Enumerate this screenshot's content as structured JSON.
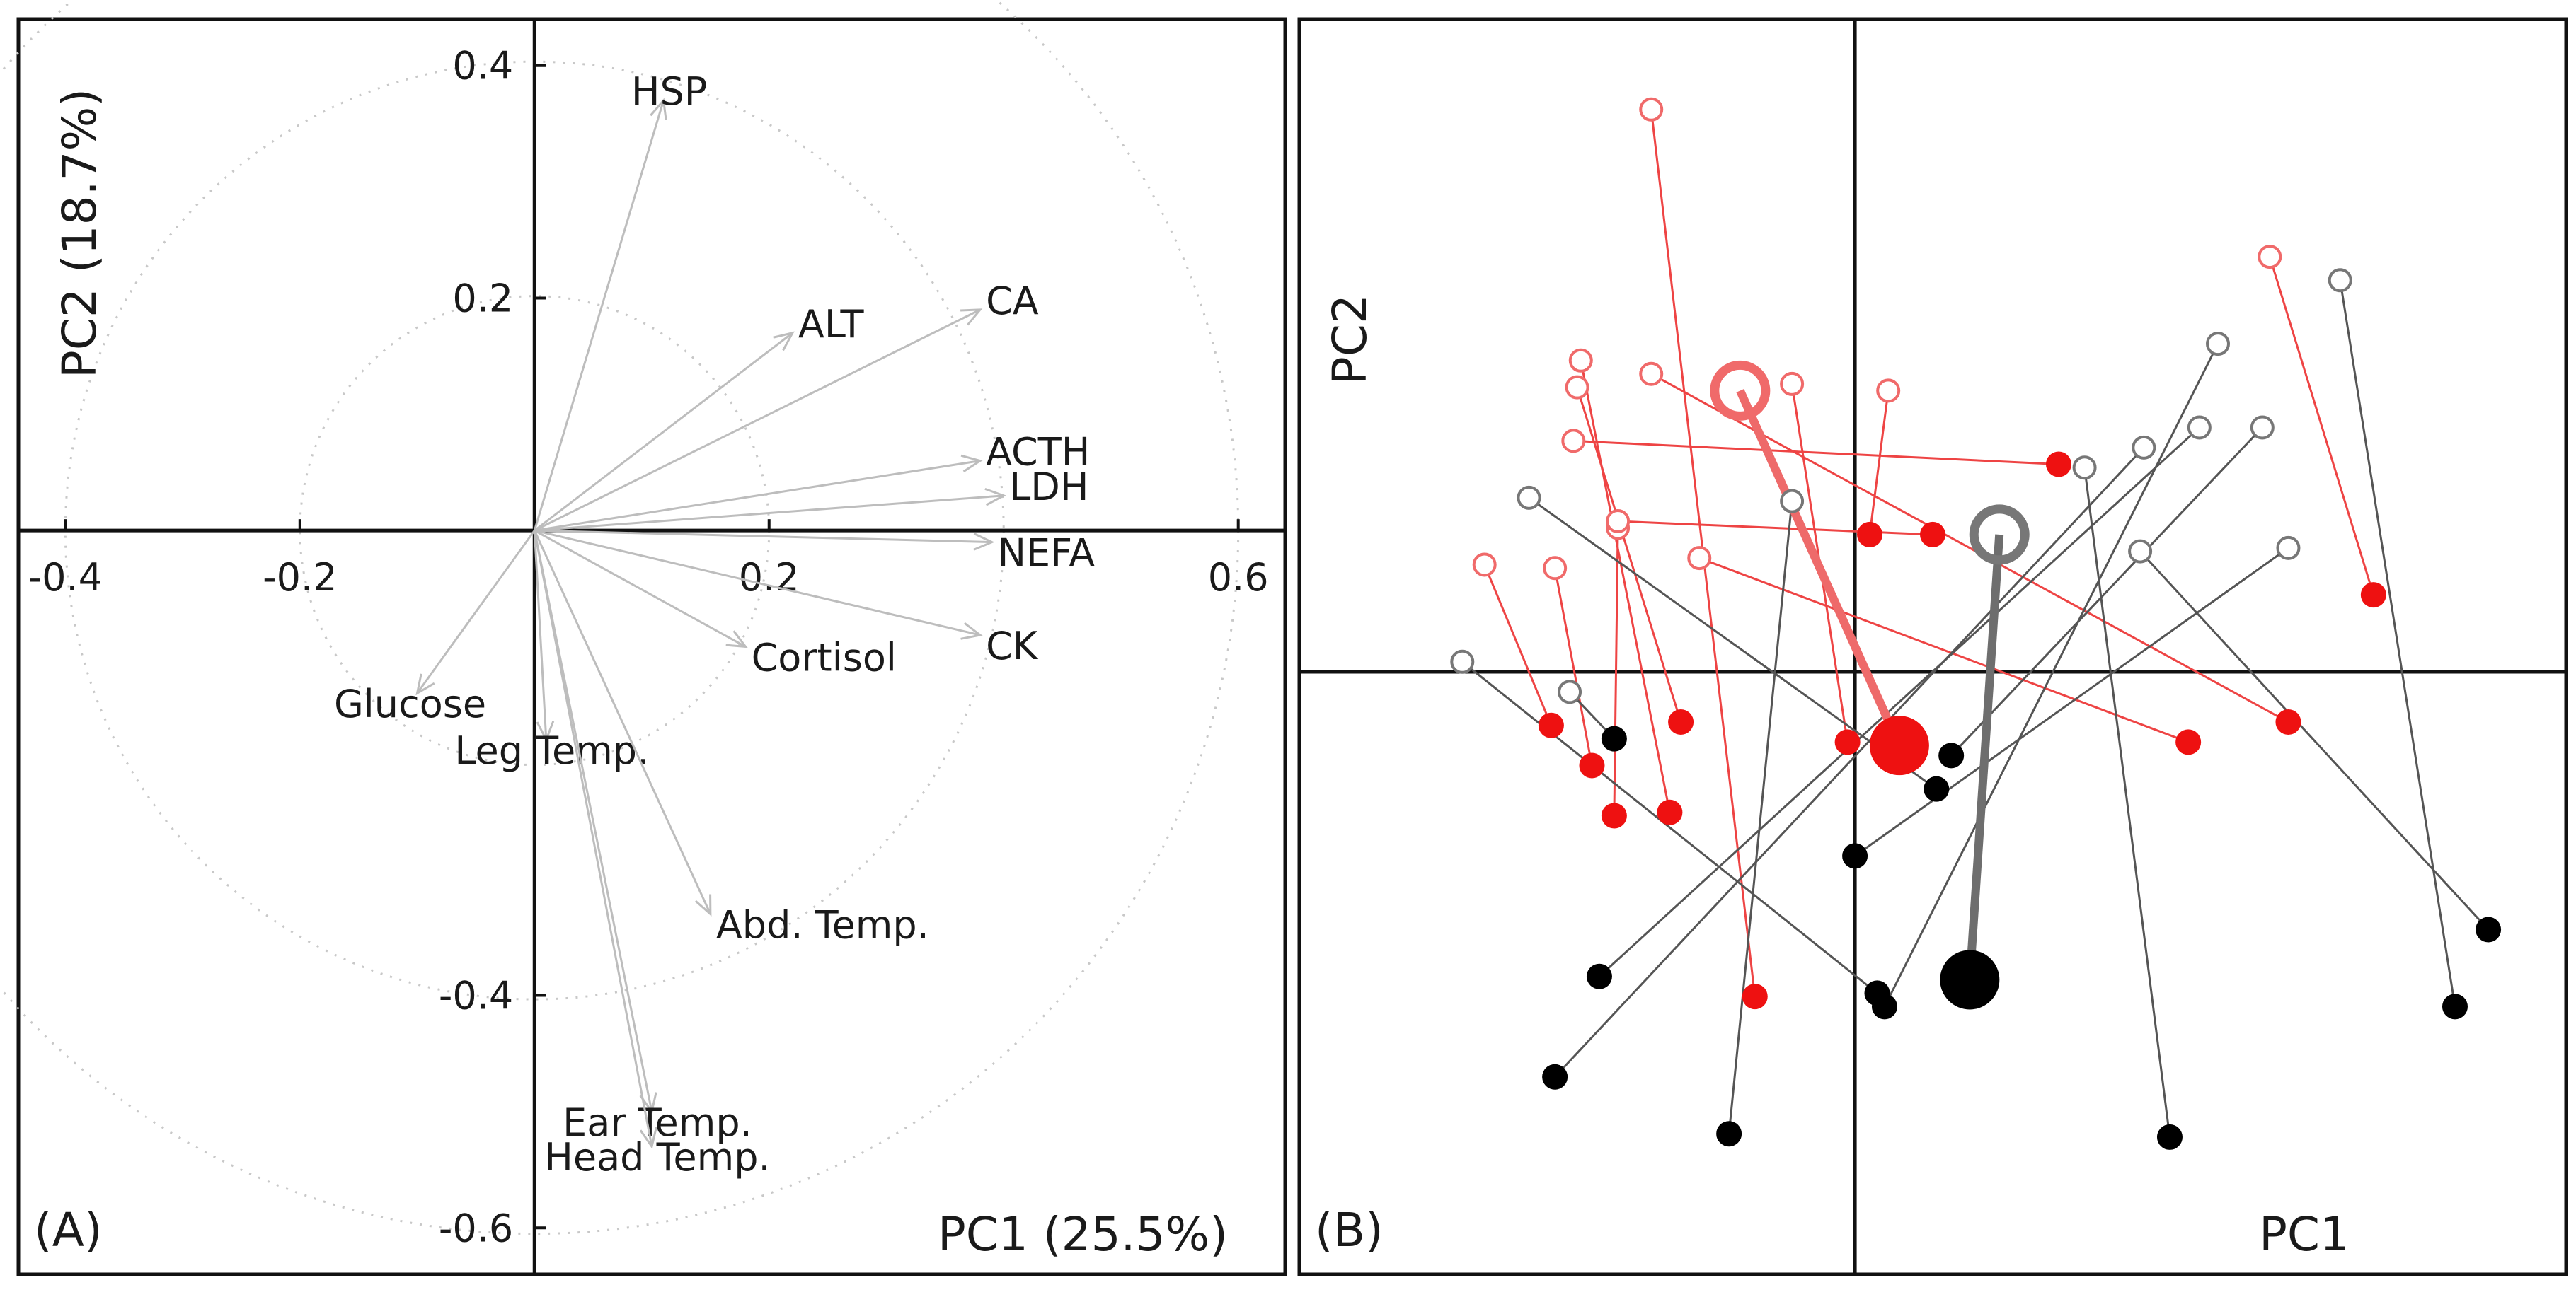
{
  "chart_data": [
    {
      "type": "scatter",
      "subtype": "pca-loadings-biplot",
      "panel_label": "(A)",
      "xlabel": "PC1 (25.5%)",
      "ylabel": "PC2 (18.7%)",
      "xlim": [
        -0.44,
        0.64
      ],
      "ylim": [
        -0.64,
        0.44
      ],
      "xticks": [
        -0.4,
        -0.2,
        0.2,
        0.6
      ],
      "xtick_labels": [
        "-0.4",
        "-0.2",
        "0.2",
        "0.6"
      ],
      "yticks": [
        0.4,
        0.2,
        -0.4,
        -0.6
      ],
      "ytick_labels": [
        "0.4",
        "0.2",
        "-0.4",
        "-0.6"
      ],
      "circle_radii": [
        0.2,
        0.4,
        0.6
      ],
      "loadings": [
        {
          "name": "HSP",
          "x": 0.11,
          "y": 0.37
        },
        {
          "name": "CA",
          "x": 0.38,
          "y": 0.19
        },
        {
          "name": "ALT",
          "x": 0.22,
          "y": 0.17
        },
        {
          "name": "ACTH",
          "x": 0.38,
          "y": 0.06
        },
        {
          "name": "LDH",
          "x": 0.4,
          "y": 0.03
        },
        {
          "name": "NEFA",
          "x": 0.39,
          "y": -0.01
        },
        {
          "name": "CK",
          "x": 0.38,
          "y": -0.09
        },
        {
          "name": "Cortisol",
          "x": 0.18,
          "y": -0.1
        },
        {
          "name": "Glucose",
          "x": -0.1,
          "y": -0.14
        },
        {
          "name": "Leg Temp.",
          "x": 0.01,
          "y": -0.18
        },
        {
          "name": "Abd. Temp.",
          "x": 0.15,
          "y": -0.33
        },
        {
          "name": "Ear Temp.",
          "x": 0.1,
          "y": -0.5
        },
        {
          "name": "Head Temp.",
          "x": 0.1,
          "y": -0.53
        }
      ]
    },
    {
      "type": "scatter",
      "subtype": "pca-scores-paired",
      "panel_label": "(B)",
      "xlabel": "PC1",
      "ylabel": "PC2",
      "xlim": [
        -1.5,
        1.92
      ],
      "ylim": [
        -1.8,
        1.95
      ],
      "colors": {
        "red_start": "#f06a6a",
        "red_end": "#ee1111",
        "red_line": "#ee4444",
        "red_mean_line": "#ee6a6a",
        "grey_start": "#777777",
        "black_end": "#000000",
        "grey_line": "#555555",
        "grey_mean_line": "#6e6e6e"
      },
      "red_pairs": [
        {
          "from": [
            -0.55,
            1.68
          ],
          "to": [
            -0.27,
            -0.97
          ]
        },
        {
          "from": [
            -0.74,
            0.93
          ],
          "to": [
            -0.5,
            -0.42
          ]
        },
        {
          "from": [
            -0.75,
            0.85
          ],
          "to": [
            -0.47,
            -0.15
          ]
        },
        {
          "from": [
            -0.81,
            0.31
          ],
          "to": [
            -0.71,
            -0.28
          ]
        },
        {
          "from": [
            -1.0,
            0.32
          ],
          "to": [
            -0.82,
            -0.16
          ]
        },
        {
          "from": [
            -0.64,
            0.43
          ],
          "to": [
            -0.65,
            -0.43
          ]
        },
        {
          "from": [
            -0.17,
            0.86
          ],
          "to": [
            -0.02,
            -0.21
          ]
        },
        {
          "from": [
            0.09,
            0.84
          ],
          "to": [
            0.04,
            0.41
          ]
        },
        {
          "from": [
            1.12,
            1.24
          ],
          "to": [
            1.4,
            0.23
          ]
        },
        {
          "from": [
            -0.76,
            0.69
          ],
          "to": [
            0.55,
            0.62
          ]
        },
        {
          "from": [
            -0.64,
            0.45
          ],
          "to": [
            0.21,
            0.41
          ]
        },
        {
          "from": [
            -0.55,
            0.89
          ],
          "to": [
            1.17,
            -0.15
          ]
        },
        {
          "from": [
            -0.42,
            0.34
          ],
          "to": [
            0.9,
            -0.21
          ]
        }
      ],
      "red_mean": {
        "from": [
          -0.31,
          0.84
        ],
        "to": [
          0.12,
          -0.22
        ]
      },
      "grey_pairs": [
        {
          "from": [
            -1.06,
            0.03
          ],
          "to": [
            0.06,
            -0.96
          ]
        },
        {
          "from": [
            -0.88,
            0.52
          ],
          "to": [
            0.22,
            -0.35
          ]
        },
        {
          "from": [
            -0.77,
            -0.06
          ],
          "to": [
            -0.65,
            -0.2
          ]
        },
        {
          "from": [
            -0.17,
            0.51
          ],
          "to": [
            -0.34,
            -1.38
          ]
        },
        {
          "from": [
            0.78,
            0.67
          ],
          "to": [
            -0.81,
            -1.21
          ]
        },
        {
          "from": [
            0.93,
            0.73
          ],
          "to": [
            -0.69,
            -0.91
          ]
        },
        {
          "from": [
            0.98,
            0.98
          ],
          "to": [
            0.08,
            -1.0
          ]
        },
        {
          "from": [
            1.1,
            0.73
          ],
          "to": [
            0.26,
            -0.25
          ]
        },
        {
          "from": [
            0.62,
            0.61
          ],
          "to": [
            0.85,
            -1.39
          ]
        },
        {
          "from": [
            1.31,
            1.17
          ],
          "to": [
            1.62,
            -1.0
          ]
        },
        {
          "from": [
            0.77,
            0.36
          ],
          "to": [
            1.71,
            -0.77
          ]
        },
        {
          "from": [
            1.17,
            0.37
          ],
          "to": [
            0.0,
            -0.55
          ]
        }
      ],
      "grey_mean": {
        "from": [
          0.39,
          0.41
        ],
        "to": [
          0.31,
          -0.92
        ]
      }
    }
  ]
}
